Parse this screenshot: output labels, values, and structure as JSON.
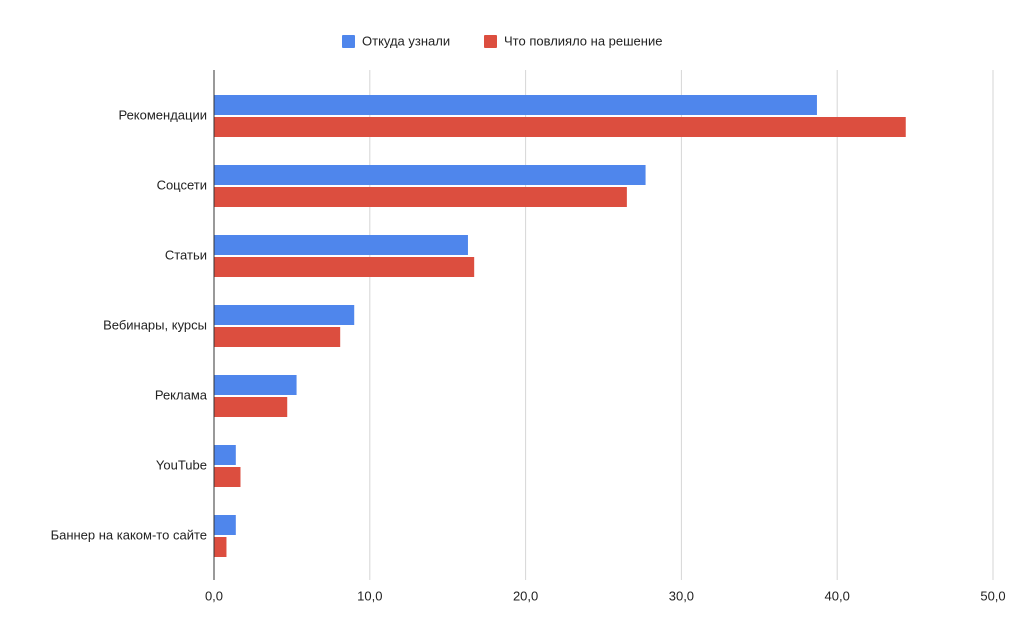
{
  "chart_data": {
    "type": "hbar",
    "categories": [
      "Рекомендации",
      "Соцсети",
      "Статьи",
      "Вебинары, курсы",
      "Реклама",
      "YouTube",
      "Баннер на каком-то сайте"
    ],
    "series": [
      {
        "name": "Откуда узнали",
        "color": "#4f86ec",
        "values": [
          38.7,
          27.7,
          16.3,
          9.0,
          5.3,
          1.4,
          1.4
        ]
      },
      {
        "name": "Что повлияло на решение",
        "color": "#dc4e3f",
        "values": [
          44.4,
          26.5,
          16.7,
          8.1,
          4.7,
          1.7,
          0.8
        ]
      }
    ],
    "xlim": [
      0,
      50
    ],
    "xticks": [
      {
        "value": 0,
        "label": "0,0"
      },
      {
        "value": 10,
        "label": "10,0"
      },
      {
        "value": 20,
        "label": "20,0"
      },
      {
        "value": 30,
        "label": "30,0"
      },
      {
        "value": 40,
        "label": "40,0"
      },
      {
        "value": 50,
        "label": "50,0"
      }
    ],
    "grid": true
  }
}
